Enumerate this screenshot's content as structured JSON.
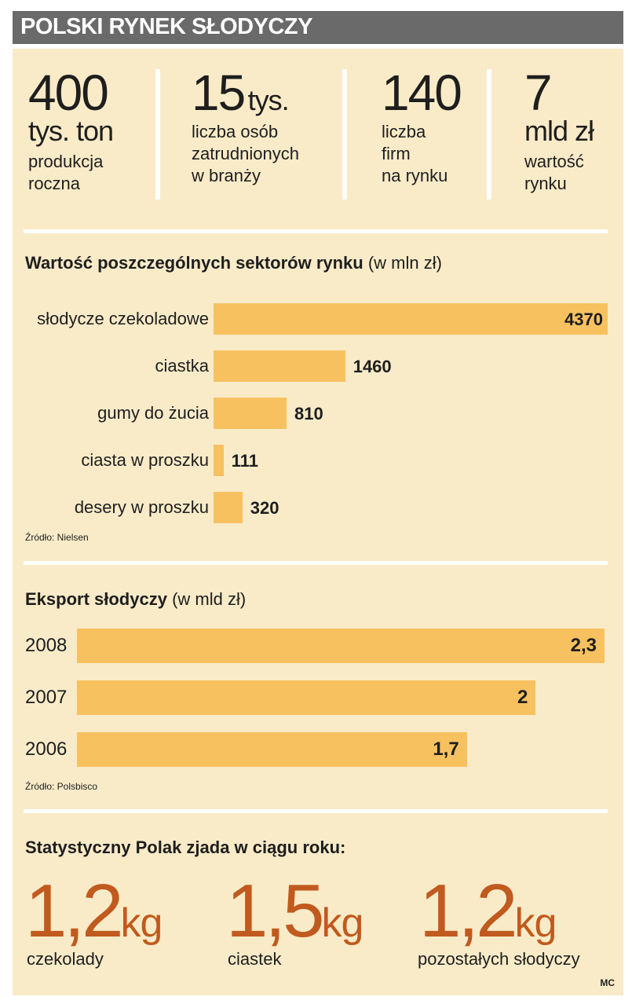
{
  "header": {
    "title": "POLSKI RYNEK SŁODYCZY"
  },
  "top_stats": [
    {
      "value": "400",
      "unit": "tys. ton",
      "desc1": "produkcja",
      "desc2": "roczna"
    },
    {
      "value": "15",
      "unit": "tys.",
      "desc1": "liczba osób",
      "desc2": "zatrudnionych",
      "desc3": "w branży"
    },
    {
      "value": "140",
      "desc1": "liczba",
      "desc2": "firm",
      "desc3": "na rynku"
    },
    {
      "value": "7",
      "unit": "mld zł",
      "desc1": "wartość",
      "desc2": "rynku"
    }
  ],
  "chart_data": [
    {
      "type": "bar",
      "orientation": "horizontal",
      "title": "Wartość poszczególnych sektorów rynku",
      "unit_note": "(w mln zł)",
      "categories": [
        "słodycze czekoladowe",
        "ciastka",
        "gumy do żucia",
        "ciasta w proszku",
        "desery w proszku"
      ],
      "values": [
        4370,
        1460,
        810,
        111,
        320
      ],
      "value_labels": [
        "4370",
        "1460",
        "810",
        "111",
        "320"
      ],
      "xlim": [
        0,
        4370
      ],
      "source": "Źródło: Nielsen"
    },
    {
      "type": "bar",
      "orientation": "horizontal",
      "title": "Eksport słodyczy",
      "unit_note": "(w mld zł)",
      "categories": [
        "2008",
        "2007",
        "2006"
      ],
      "values": [
        2.3,
        2.0,
        1.7
      ],
      "value_labels": [
        "2,3",
        "2",
        "1,7"
      ],
      "xlim": [
        0,
        2.3
      ],
      "source": "Źródło: Polsbisco"
    }
  ],
  "consumption": {
    "title": "Statystyczny Polak zjada w ciągu roku:",
    "items": [
      {
        "value": "1,2",
        "unit": "kg",
        "label": "czekolady"
      },
      {
        "value": "1,5",
        "unit": "kg",
        "label": "ciastek"
      },
      {
        "value": "1,2",
        "unit": "kg",
        "label": "pozostałych słodyczy"
      }
    ]
  },
  "credit": "MC",
  "colors": {
    "bar": "#f8c160",
    "panel": "#f9ebc8",
    "header": "#6a6a6a",
    "accent": "#c15a1e"
  }
}
